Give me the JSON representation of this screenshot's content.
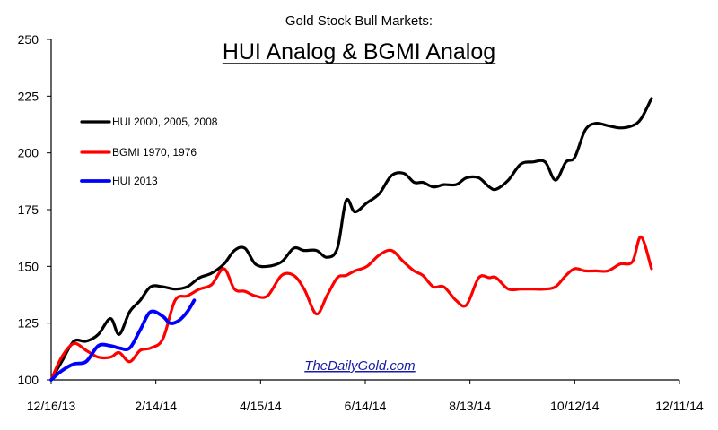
{
  "chart_data": {
    "type": "line",
    "subtitle": "Gold Stock Bull Markets:",
    "title": "HUI Analog & BGMI Analog",
    "xlabel": "",
    "ylabel": "",
    "x_tick_labels": [
      "12/16/13",
      "2/14/14",
      "4/15/14",
      "6/14/14",
      "8/13/14",
      "10/12/14",
      "12/11/14"
    ],
    "ylim": [
      100,
      250
    ],
    "y_tick_labels": [
      "100",
      "125",
      "150",
      "175",
      "200",
      "225",
      "250"
    ],
    "grid": false,
    "legend_position": "top-left",
    "watermark": "TheDailyGold.com",
    "series": [
      {
        "name": "HUI 2000, 2005, 2008",
        "color": "#000000",
        "points": [
          [
            "12/16/13",
            100
          ],
          [
            "12/22/13",
            108
          ],
          [
            "12/29/13",
            117
          ],
          [
            "1/5/14",
            117
          ],
          [
            "1/12/14",
            120
          ],
          [
            "1/19/14",
            127
          ],
          [
            "1/24/14",
            120
          ],
          [
            "1/30/14",
            130
          ],
          [
            "2/5/14",
            135
          ],
          [
            "2/11/14",
            141
          ],
          [
            "2/18/14",
            141
          ],
          [
            "2/25/14",
            140
          ],
          [
            "3/4/14",
            141
          ],
          [
            "3/11/14",
            145
          ],
          [
            "3/18/14",
            147
          ],
          [
            "3/25/14",
            151
          ],
          [
            "3/31/14",
            157
          ],
          [
            "4/6/14",
            158
          ],
          [
            "4/12/14",
            151
          ],
          [
            "4/19/14",
            150
          ],
          [
            "4/27/14",
            152
          ],
          [
            "5/4/14",
            158
          ],
          [
            "5/10/14",
            157
          ],
          [
            "5/17/14",
            157
          ],
          [
            "5/23/14",
            154
          ],
          [
            "5/29/14",
            158
          ],
          [
            "6/3/14",
            179
          ],
          [
            "6/8/14",
            174
          ],
          [
            "6/15/14",
            178
          ],
          [
            "6/22/14",
            182
          ],
          [
            "6/29/14",
            190
          ],
          [
            "7/6/14",
            191
          ],
          [
            "7/12/14",
            187
          ],
          [
            "7/17/14",
            187
          ],
          [
            "7/23/14",
            185
          ],
          [
            "7/29/14",
            186
          ],
          [
            "8/5/14",
            186
          ],
          [
            "8/11/14",
            189
          ],
          [
            "8/18/14",
            189
          ],
          [
            "8/24/14",
            185
          ],
          [
            "8/28/14",
            184
          ],
          [
            "9/4/14",
            188
          ],
          [
            "9/11/14",
            195
          ],
          [
            "9/18/14",
            196
          ],
          [
            "9/25/14",
            196
          ],
          [
            "10/1/14",
            188
          ],
          [
            "10/7/14",
            196
          ],
          [
            "10/12/14",
            198
          ],
          [
            "10/18/14",
            210
          ],
          [
            "10/24/14",
            213
          ],
          [
            "10/31/14",
            212
          ],
          [
            "11/7/14",
            211
          ],
          [
            "11/14/14",
            212
          ],
          [
            "11/19/14",
            215
          ],
          [
            "11/25/14",
            224
          ]
        ]
      },
      {
        "name": "BGMI 1970, 1976",
        "color": "#ff0000",
        "points": [
          [
            "12/16/13",
            100
          ],
          [
            "12/22/13",
            110
          ],
          [
            "12/29/13",
            116
          ],
          [
            "1/5/14",
            113
          ],
          [
            "1/12/14",
            110
          ],
          [
            "1/19/14",
            110
          ],
          [
            "1/24/14",
            112
          ],
          [
            "1/30/14",
            108
          ],
          [
            "2/5/14",
            113
          ],
          [
            "2/11/14",
            114
          ],
          [
            "2/18/14",
            118
          ],
          [
            "2/25/14",
            135
          ],
          [
            "3/4/14",
            137
          ],
          [
            "3/11/14",
            140
          ],
          [
            "3/18/14",
            142
          ],
          [
            "3/25/14",
            149
          ],
          [
            "3/31/14",
            140
          ],
          [
            "4/6/14",
            139
          ],
          [
            "4/12/14",
            137
          ],
          [
            "4/19/14",
            137
          ],
          [
            "4/27/14",
            146
          ],
          [
            "5/4/14",
            146
          ],
          [
            "5/10/14",
            140
          ],
          [
            "5/17/14",
            129
          ],
          [
            "5/23/14",
            137
          ],
          [
            "5/29/14",
            145
          ],
          [
            "6/3/14",
            146
          ],
          [
            "6/8/14",
            148
          ],
          [
            "6/15/14",
            150
          ],
          [
            "6/22/14",
            155
          ],
          [
            "6/29/14",
            157
          ],
          [
            "7/6/14",
            152
          ],
          [
            "7/12/14",
            148
          ],
          [
            "7/17/14",
            146
          ],
          [
            "7/23/14",
            141
          ],
          [
            "7/29/14",
            141
          ],
          [
            "8/5/14",
            135
          ],
          [
            "8/11/14",
            133
          ],
          [
            "8/18/14",
            145
          ],
          [
            "8/24/14",
            145
          ],
          [
            "8/28/14",
            145
          ],
          [
            "9/4/14",
            140
          ],
          [
            "9/11/14",
            140
          ],
          [
            "9/18/14",
            140
          ],
          [
            "9/25/14",
            140
          ],
          [
            "10/1/14",
            141
          ],
          [
            "10/7/14",
            146
          ],
          [
            "10/12/14",
            149
          ],
          [
            "10/18/14",
            148
          ],
          [
            "10/24/14",
            148
          ],
          [
            "10/31/14",
            148
          ],
          [
            "11/7/14",
            151
          ],
          [
            "11/14/14",
            152
          ],
          [
            "11/19/14",
            163
          ],
          [
            "11/25/14",
            149
          ]
        ]
      },
      {
        "name": "HUI 2013",
        "color": "#0000ff",
        "points": [
          [
            "12/16/13",
            100
          ],
          [
            "12/22/13",
            104
          ],
          [
            "12/29/13",
            107
          ],
          [
            "1/5/14",
            108
          ],
          [
            "1/12/14",
            115
          ],
          [
            "1/19/14",
            115
          ],
          [
            "1/24/14",
            114
          ],
          [
            "1/30/14",
            114
          ],
          [
            "2/5/14",
            122
          ],
          [
            "2/11/14",
            130
          ],
          [
            "2/18/14",
            128
          ],
          [
            "2/22/14",
            125
          ],
          [
            "2/27/14",
            126
          ],
          [
            "3/4/14",
            130
          ],
          [
            "3/8/14",
            135
          ]
        ]
      }
    ]
  }
}
